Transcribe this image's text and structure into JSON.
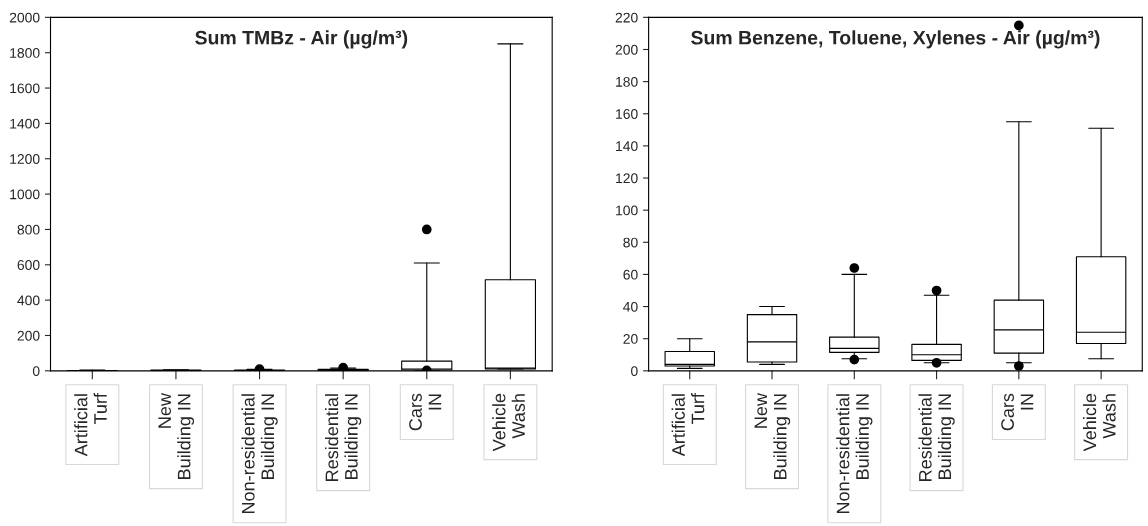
{
  "chart_data": [
    {
      "type": "box",
      "title": "Sum TMBz - Air (µg/m³)",
      "categories": [
        "Artificial\nTurf",
        "New\nBuilding IN",
        "Non-residential\nBuilding IN",
        "Residential\nBuilding IN",
        "Cars\nIN",
        "Vehicle\nWash"
      ],
      "ylim": [
        0,
        2000
      ],
      "yticks": [
        0,
        200,
        400,
        600,
        800,
        1000,
        1200,
        1400,
        1600,
        1800,
        2000
      ],
      "grid": false,
      "boxes": [
        {
          "low": 0,
          "q1": 0,
          "median": 1,
          "q3": 2,
          "high": 5
        },
        {
          "low": 0,
          "q1": 1,
          "median": 2,
          "q3": 4,
          "high": 6
        },
        {
          "low": 0,
          "q1": 1,
          "median": 2,
          "q3": 5,
          "high": 8,
          "outliers": [
            10
          ]
        },
        {
          "low": 0,
          "q1": 2,
          "median": 4,
          "q3": 8,
          "high": 15,
          "outliers": [
            18,
            3
          ]
        },
        {
          "low": 0,
          "q1": 5,
          "median": 10,
          "q3": 55,
          "high": 610,
          "outliers": [
            800,
            2
          ]
        },
        {
          "low": 10,
          "q1": 10,
          "median": 15,
          "q3": 515,
          "high": 1850
        }
      ]
    },
    {
      "type": "box",
      "title": "Sum Benzene, Toluene, Xylenes - Air (µg/m³)",
      "categories": [
        "Artificial\nTurf",
        "New\nBuilding IN",
        "Non-residential\nBuilding IN",
        "Residential\nBuilding IN",
        "Cars\nIN",
        "Vehicle\nWash"
      ],
      "ylim": [
        0,
        220
      ],
      "yticks": [
        0,
        20,
        40,
        60,
        80,
        100,
        120,
        140,
        160,
        180,
        200,
        220
      ],
      "grid": false,
      "boxes": [
        {
          "low": 1.5,
          "q1": 3,
          "median": 4,
          "q3": 12,
          "high": 20
        },
        {
          "low": 4,
          "q1": 5.5,
          "median": 18,
          "q3": 35,
          "high": 40
        },
        {
          "low": 7.5,
          "q1": 11.5,
          "median": 14,
          "q3": 21,
          "high": 60,
          "outliers": [
            64,
            7
          ]
        },
        {
          "low": 5,
          "q1": 6.5,
          "median": 10,
          "q3": 16.5,
          "high": 47,
          "outliers": [
            50,
            5
          ]
        },
        {
          "low": 5,
          "q1": 11,
          "median": 25.5,
          "q3": 44,
          "high": 155,
          "outliers": [
            215,
            3
          ]
        },
        {
          "low": 7.5,
          "q1": 17,
          "median": 24,
          "q3": 71,
          "high": 151
        }
      ]
    }
  ]
}
